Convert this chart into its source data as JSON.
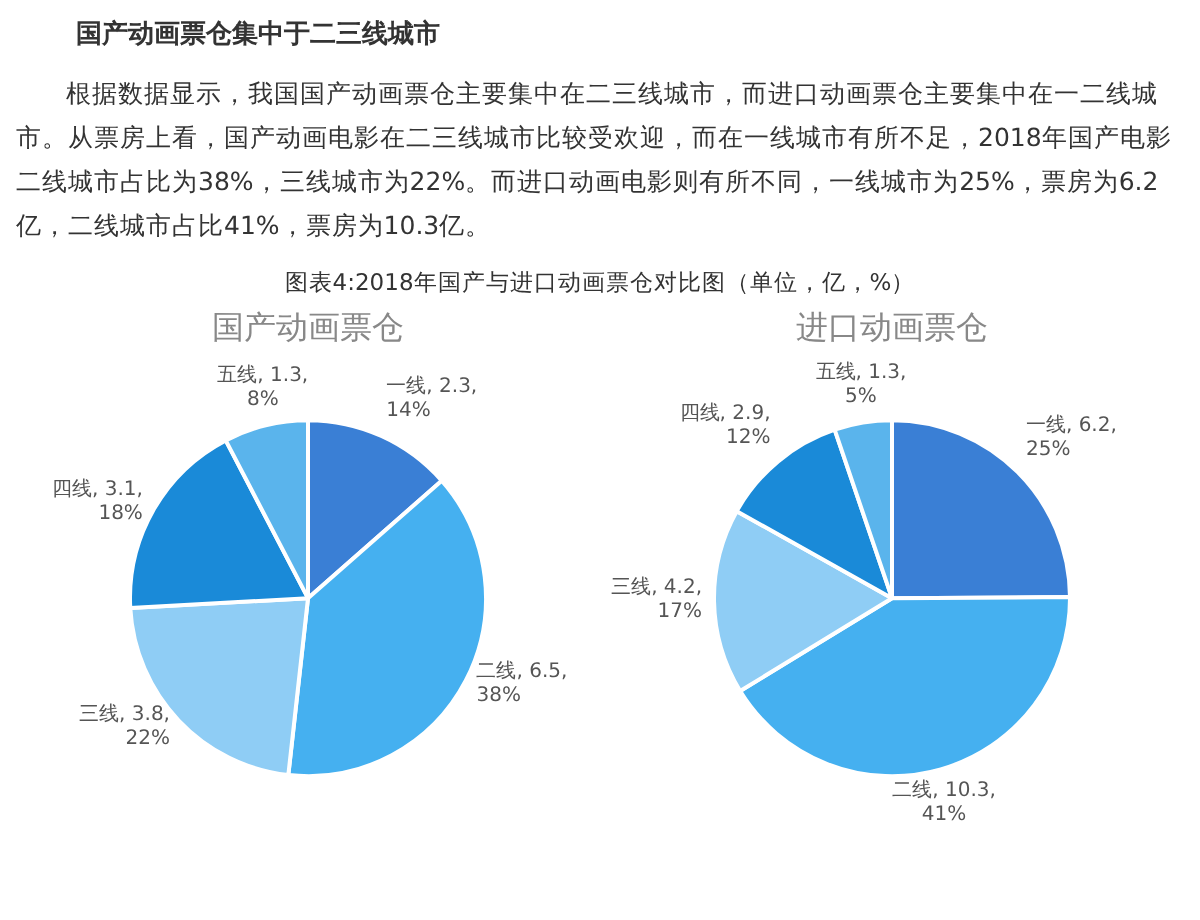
{
  "chart_data": [
    {
      "type": "other",
      "title": "国产动画票仓集中于二三线城市",
      "subtitle": "根据数据显示，我国国产动画票仓主要集中在二三线城市，而进口动画票仓主要集中在一二线城市。从票房上看，国产动画电影在二三线城市比较受欢迎，而在一线城市有所不足，2018年国产电影二线城市占比为38%，三线城市为22%。而进口动画电影则有所不同，一线城市为25%，票房为6.2亿，二线城市占比41%，票房为10.3亿。",
      "annotations": [
        "图表4:2018年国产与进口动画票仓对比图（单位，亿，%）"
      ]
    },
    {
      "type": "pie",
      "title": "国产动画票仓",
      "categories": [
        "一线",
        "二线",
        "三线",
        "四线",
        "五线"
      ],
      "values": [
        2.3,
        6.5,
        3.8,
        3.1,
        1.3
      ],
      "colors": [
        "#3a7fd5",
        "#45b0f0",
        "#8fcdf5",
        "#1a8ad8",
        "#5ab4ec"
      ],
      "value_labels": [
        ", 2.3, 14%",
        ", 6.5, 38%",
        ", 3.8, 22%",
        ", 3.1, 18%",
        ", 1.3, 8%"
      ]
    },
    {
      "type": "pie",
      "title": "进口动画票仓",
      "categories": [
        "一线",
        "二线",
        "三线",
        "四线",
        "五线"
      ],
      "values": [
        6.2,
        10.3,
        4.2,
        2.9,
        1.3
      ],
      "colors": [
        "#3a7fd5",
        "#45b0f0",
        "#8fcdf5",
        "#1a8ad8",
        "#5ab4ec"
      ],
      "value_labels": [
        ", 6.2, 25%",
        ", 10.3, 41%",
        ", 4.2, 17%",
        ", 2.9, 12%",
        ", 1.3, 5%"
      ]
    }
  ]
}
